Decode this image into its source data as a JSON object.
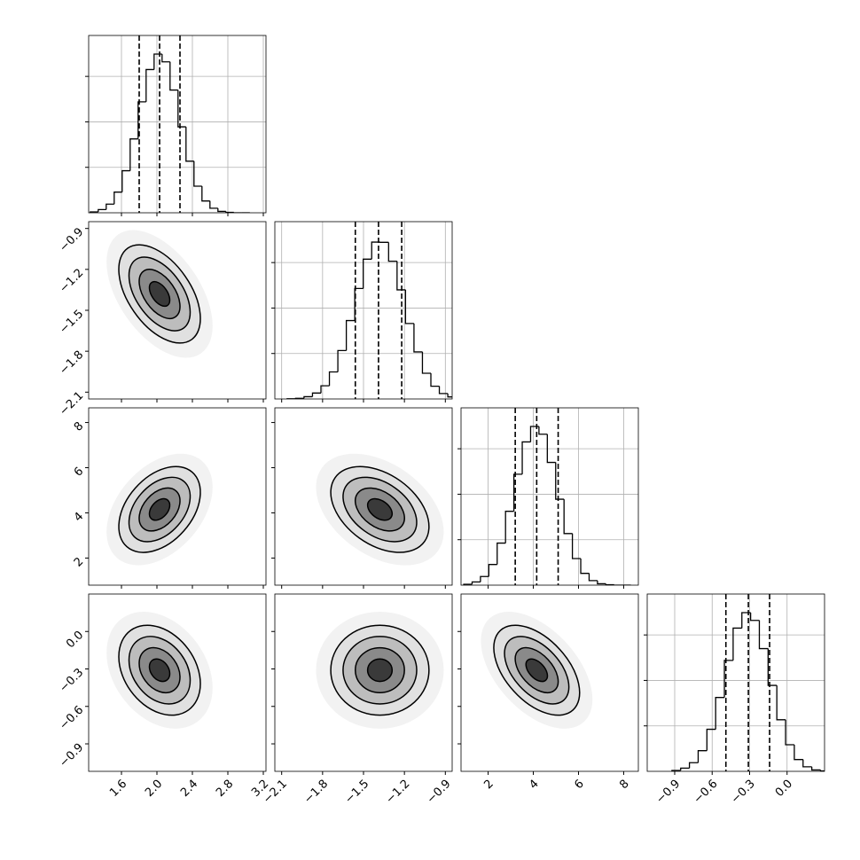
{
  "chart_data": {
    "type": "corner",
    "hist_ylim": [
      0,
      780
    ],
    "hist_yticks": [
      200,
      400,
      600
    ],
    "grid": true,
    "contour_levels": [
      0.5,
      1,
      1.5,
      2
    ],
    "line_color": "#000000",
    "parameters": [
      {
        "xlim": [
          1.23,
          3.23
        ],
        "mean": 2.03,
        "sigma": 0.23,
        "quantiles": [
          1.8,
          2.03,
          2.26
        ],
        "ticks": [
          1.6,
          {
            "value": 2,
            "label": "2.0"
          },
          2.4,
          2.8,
          3.2
        ],
        "bins": [
          1.248,
          1.338,
          1.428,
          1.518,
          1.608,
          1.698,
          1.788,
          1.878,
          1.968,
          2.058,
          2.148,
          2.238,
          2.328,
          2.418,
          2.508,
          2.598,
          2.688,
          2.778,
          2.868,
          2.958,
          3.048
        ],
        "counts": [
          4,
          14,
          38,
          91,
          185,
          325,
          488,
          630,
          698,
          664,
          540,
          378,
          227,
          117,
          52,
          20,
          6,
          2,
          0,
          0
        ]
      },
      {
        "xlim": [
          -2.15,
          -0.85
        ],
        "mean": -1.38,
        "sigma": 0.18,
        "quantiles": [
          -1.56,
          -1.39,
          -1.22
        ],
        "ticks": [
          {
            "value": -2.1,
            "label": "−2.1"
          },
          {
            "value": -1.8,
            "label": "−1.8"
          },
          {
            "value": -1.5,
            "label": "−1.5"
          },
          {
            "value": -1.2,
            "label": "−1.2"
          },
          {
            "value": -0.9,
            "label": "−0.9"
          }
        ],
        "bins": [
          -2.06,
          -1.998,
          -1.936,
          -1.874,
          -1.812,
          -1.75,
          -1.688,
          -1.626,
          -1.564,
          -1.502,
          -1.44,
          -1.378,
          -1.316,
          -1.254,
          -1.192,
          -1.13,
          -1.068,
          -1.006,
          -0.944,
          -0.882,
          -0.82
        ],
        "counts": [
          1,
          3,
          10,
          26,
          58,
          119,
          213,
          345,
          486,
          615,
          690,
          689,
          606,
          480,
          332,
          207,
          113,
          56,
          24,
          9
        ]
      },
      {
        "xlim": [
          0.8,
          8.65
        ],
        "mean": 4.15,
        "sigma": 0.95,
        "quantiles": [
          3.2,
          4.15,
          5.1
        ],
        "ticks": [
          2,
          4,
          6,
          8
        ],
        "bins": [
          0.92,
          1.29,
          1.66,
          2.03,
          2.4,
          2.77,
          3.14,
          3.51,
          3.88,
          4.25,
          4.62,
          4.99,
          5.36,
          5.73,
          6.1,
          6.47,
          6.84,
          7.21,
          7.58,
          7.95,
          8.32
        ],
        "counts": [
          4,
          14,
          38,
          91,
          185,
          325,
          488,
          630,
          698,
          664,
          540,
          378,
          227,
          117,
          52,
          20,
          6,
          2,
          0,
          0
        ]
      },
      {
        "xlim": [
          -1.12,
          0.3
        ],
        "mean": -0.31,
        "sigma": 0.18,
        "quantiles": [
          -0.49,
          -0.31,
          -0.14
        ],
        "ticks": [
          {
            "value": -0.9,
            "label": "−0.9"
          },
          {
            "value": -0.6,
            "label": "−0.6"
          },
          {
            "value": -0.3,
            "label": "−0.3"
          },
          {
            "value": 0,
            "label": "0.0"
          }
        ],
        "bins": [
          -0.922,
          -0.852,
          -0.782,
          -0.712,
          -0.642,
          -0.572,
          -0.502,
          -0.432,
          -0.362,
          -0.292,
          -0.222,
          -0.152,
          -0.082,
          -0.012,
          0.058,
          0.128,
          0.198,
          0.268,
          0.338,
          0.408,
          0.478
        ],
        "counts": [
          4,
          14,
          38,
          91,
          185,
          325,
          488,
          630,
          698,
          664,
          540,
          378,
          227,
          117,
          52,
          20,
          6,
          2,
          0,
          0
        ]
      }
    ],
    "pairs": [
      {
        "x": 0,
        "y": 1,
        "rho": -0.5
      },
      {
        "x": 0,
        "y": 2,
        "rho": 0.4
      },
      {
        "x": 1,
        "y": 2,
        "rho": -0.4
      },
      {
        "x": 0,
        "y": 3,
        "rho": -0.3
      },
      {
        "x": 1,
        "y": 3,
        "rho": 0.0
      },
      {
        "x": 2,
        "y": 3,
        "rho": -0.5
      }
    ]
  }
}
